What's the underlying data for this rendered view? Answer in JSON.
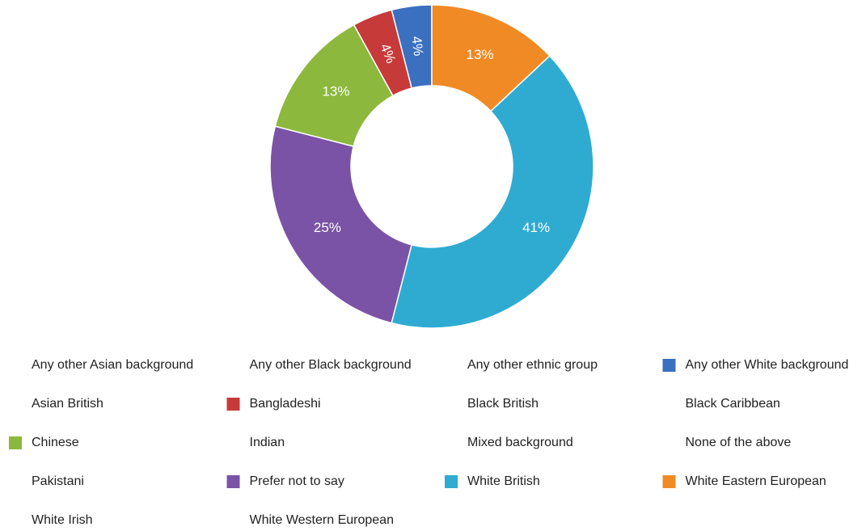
{
  "chart_data": {
    "type": "donut",
    "categories": [
      "Any other Asian background",
      "Any other Black background",
      "Any other ethnic group",
      "Any other White background",
      "Asian British",
      "Bangladeshi",
      "Black British",
      "Black Caribbean",
      "Chinese",
      "Indian",
      "Mixed background",
      "None of the above",
      "Pakistani",
      "Prefer not to say",
      "White British",
      "White Eastern European",
      "White Irish",
      "White Western European"
    ],
    "values": [
      0,
      0,
      0,
      4,
      0,
      4,
      0,
      0,
      13,
      0,
      0,
      0,
      0,
      25,
      41,
      13,
      0,
      0
    ],
    "value_labels": [
      null,
      null,
      null,
      "4%",
      null,
      "4%",
      null,
      null,
      "13%",
      null,
      null,
      null,
      null,
      "25%",
      "41%",
      "13%",
      null,
      null
    ],
    "colors": [
      null,
      null,
      null,
      "#3b6fc0",
      null,
      "#c73a3a",
      null,
      null,
      "#8cb83d",
      null,
      null,
      null,
      null,
      "#7a53a7",
      "#2fabd2",
      "#f08a25",
      null,
      null
    ],
    "legend": "bottom"
  }
}
